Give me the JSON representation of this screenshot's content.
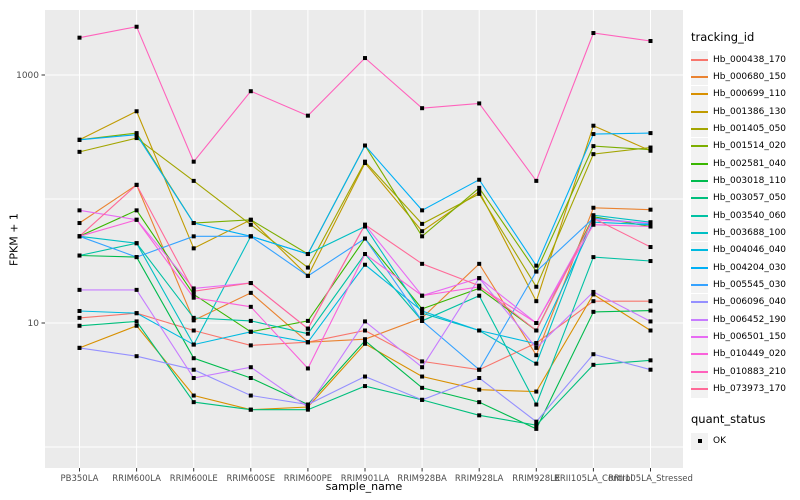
{
  "figure": {
    "background": "#FFFFFF",
    "panel_background": "#EBEBEB",
    "gridline_color": "#FFFFFF",
    "axis_text_color": "#4D4D4D",
    "tick_color": "#333333",
    "legend_key_background": "#F2F2F2"
  },
  "chart_data": {
    "type": "line",
    "title": "",
    "xlabel": "sample_name",
    "ylabel": "FPKM + 1",
    "y_scale": "log10",
    "y_ticks": [
      1000,
      10
    ],
    "y_tick_labels": [
      "1000",
      "10"
    ],
    "y_gridlines": [
      1,
      10,
      100,
      1000
    ],
    "ylim": [
      0.7,
      3300
    ],
    "grid": true,
    "legend_position": "right",
    "legend_title": "tracking_id",
    "point_marker": {
      "shape": "square",
      "color": "#000000",
      "size": 4
    },
    "quant_legend": {
      "title": "quant_status",
      "items": [
        {
          "label": "OK",
          "marker": "black-square"
        }
      ]
    },
    "categories": [
      "PB350LA",
      "RRIM600LA",
      "RRIM600LE",
      "RRIM600SE",
      "RRIM600PE",
      "RRIM901LA",
      "RRIM928BA",
      "RRIM928LA",
      "RRIM928LE",
      "RRII105LA_Control",
      "RRII105LA_Stressed"
    ],
    "series": [
      {
        "name": "Hb_000438_170",
        "color": "#F8766D",
        "values": [
          11,
          12,
          8.7,
          6.6,
          7,
          8.7,
          4.9,
          4.2,
          6.9,
          15,
          15
        ]
      },
      {
        "name": "Hb_000680_150",
        "color": "#EA8331",
        "values": [
          64,
          130,
          10.5,
          17.5,
          7,
          7.4,
          11,
          30,
          5.5,
          85,
          82
        ]
      },
      {
        "name": "Hb_000699_110",
        "color": "#D89000",
        "values": [
          6.3,
          9.5,
          2.6,
          2.0,
          2.1,
          6.8,
          3.7,
          2.9,
          2.8,
          17,
          8.7
        ]
      },
      {
        "name": "Hb_001386_130",
        "color": "#C09B00",
        "values": [
          300,
          510,
          40,
          68,
          24,
          195,
          55,
          115,
          15,
          390,
          245
        ]
      },
      {
        "name": "Hb_001405_050",
        "color": "#A3A500",
        "values": [
          240,
          310,
          140,
          62,
          28,
          200,
          63,
          110,
          19.6,
          230,
          260
        ]
      },
      {
        "name": "Hb_001514_020",
        "color": "#7CAE00",
        "values": [
          300,
          340,
          64,
          68,
          36,
          270,
          50,
          123,
          26,
          267,
          250
        ]
      },
      {
        "name": "Hb_002581_040",
        "color": "#39B600",
        "values": [
          50,
          81,
          17,
          8.5,
          10.4,
          48,
          13,
          19,
          8.7,
          72,
          60
        ]
      },
      {
        "name": "Hb_003018_110",
        "color": "#00BB4E",
        "values": [
          35,
          34,
          5.2,
          3.6,
          2.2,
          7.2,
          3.0,
          2.3,
          1.4,
          12.3,
          12.6
        ]
      },
      {
        "name": "Hb_003057_050",
        "color": "#00BF7D",
        "values": [
          9.5,
          10.3,
          2.3,
          2.0,
          2.0,
          3.1,
          2.4,
          1.8,
          1.5,
          4.6,
          5.0
        ]
      },
      {
        "name": "Hb_003540_060",
        "color": "#00C1A3",
        "values": [
          35,
          44,
          11,
          10.4,
          8.2,
          36,
          10.4,
          16.6,
          2.2,
          34,
          31.6
        ]
      },
      {
        "name": "Hb_003688_100",
        "color": "#00BFC4",
        "values": [
          50,
          44,
          6.7,
          50,
          36,
          60,
          12,
          8.7,
          4.7,
          74,
          65
        ]
      },
      {
        "name": "Hb_004046_040",
        "color": "#00BAE0",
        "values": [
          12.5,
          12,
          6.7,
          8.5,
          7,
          29.5,
          12.5,
          8.7,
          6.8,
          65,
          62
        ]
      },
      {
        "name": "Hb_004204_030",
        "color": "#00B0F6",
        "values": [
          300,
          330,
          64,
          50,
          36,
          270,
          81,
          143,
          29,
          334,
          340
        ]
      },
      {
        "name": "Hb_005545_030",
        "color": "#35A2FF",
        "values": [
          50,
          34,
          50,
          50,
          24,
          48,
          10.4,
          4.2,
          26,
          70,
          63
        ]
      },
      {
        "name": "Hb_006096_040",
        "color": "#9590FF",
        "values": [
          6.3,
          5.4,
          4.2,
          2.6,
          2.2,
          3.7,
          2.4,
          3.6,
          1.6,
          5.6,
          4.2
        ]
      },
      {
        "name": "Hb_006452_190",
        "color": "#C77CFF",
        "values": [
          18.5,
          18.5,
          3.6,
          4.4,
          2.1,
          10.3,
          4.4,
          23,
          6.3,
          17.8,
          10.3
        ]
      },
      {
        "name": "Hb_006501_150",
        "color": "#E76BF3",
        "values": [
          81,
          68,
          19,
          21,
          9,
          62,
          16.6,
          23,
          10,
          68,
          64
        ]
      },
      {
        "name": "Hb_010449_020",
        "color": "#FA62DB",
        "values": [
          50,
          68,
          16,
          13.5,
          4.3,
          36,
          16.6,
          19.6,
          10,
          62,
          60
        ]
      },
      {
        "name": "Hb_010883_210",
        "color": "#FF62BC",
        "values": [
          2000,
          2450,
          200,
          740,
          470,
          1370,
          540,
          590,
          140,
          2180,
          1880
        ]
      },
      {
        "name": "Hb_073973_170",
        "color": "#FF6A98",
        "values": [
          50,
          130,
          18,
          21,
          9,
          62,
          30,
          20,
          8.7,
          70,
          41
        ]
      }
    ]
  }
}
